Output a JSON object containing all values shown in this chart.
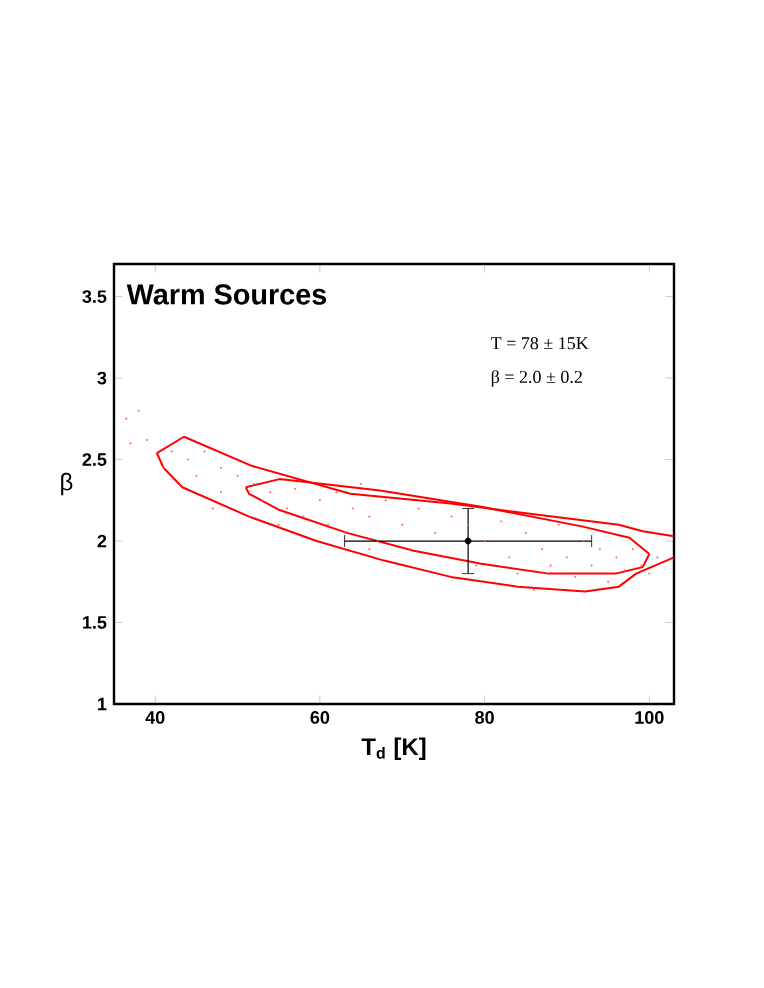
{
  "chart_data": {
    "type": "scatter",
    "title": "Warm Sources",
    "xlabel": "T$_{d}$ [K]",
    "ylabel": "β",
    "annotations": [
      "T = 78 ± 15K",
      "β = 2.0 ± 0.2"
    ],
    "xlim": [
      35,
      103
    ],
    "ylim": [
      1,
      3.7
    ],
    "xticks": [
      40,
      60,
      80,
      100
    ],
    "yticks": [
      1,
      1.5,
      2,
      2.5,
      3,
      3.5
    ],
    "series": [
      {
        "color": "#ff6666",
        "marker": "circle",
        "x": [
          36.5,
          38,
          37,
          39,
          41,
          42,
          44,
          45,
          46,
          48,
          48,
          50,
          52,
          53,
          54,
          56,
          57,
          58,
          60,
          61,
          62,
          63,
          64,
          66,
          67,
          68,
          70,
          71,
          72,
          74,
          75,
          76,
          78,
          79,
          80,
          82,
          83,
          84,
          85,
          87,
          88,
          89,
          90,
          91,
          92,
          93,
          94,
          95,
          96,
          97,
          98,
          99,
          100,
          101,
          47,
          55,
          65,
          73,
          86,
          66
        ],
        "values": [
          2.75,
          2.8,
          2.6,
          2.62,
          2.45,
          2.55,
          2.5,
          2.4,
          2.55,
          2.45,
          2.3,
          2.4,
          2.35,
          2.25,
          2.3,
          2.2,
          2.32,
          2.15,
          2.25,
          2.1,
          2.3,
          2.05,
          2.2,
          2.15,
          2.0,
          2.25,
          2.1,
          1.95,
          2.2,
          2.05,
          1.9,
          2.15,
          2.1,
          1.85,
          2.0,
          2.12,
          1.9,
          1.8,
          2.05,
          1.95,
          1.85,
          2.1,
          1.9,
          1.78,
          2.0,
          1.85,
          1.95,
          1.75,
          1.9,
          1.82,
          1.95,
          1.85,
          1.8,
          1.9,
          2.2,
          2.1,
          2.35,
          2.25,
          1.7,
          1.95
        ]
      },
      {
        "type": "line",
        "color": "#ff0000",
        "marker": "none",
        "x": [
          40.2,
          43.5,
          51.8,
          63.7,
          75.9,
          88.2,
          96.3,
          99.2,
          103
        ],
        "values": [
          2.54,
          2.64,
          2.46,
          2.29,
          2.23,
          2.15,
          2.1,
          2.06,
          2.03
        ]
      },
      {
        "type": "line",
        "color": "#ff0000",
        "marker": "none",
        "x": [
          40.2,
          41,
          43.3,
          51.4,
          59.6,
          67.8,
          75.9,
          84,
          92.2,
          96.3,
          98.4,
          103
        ],
        "values": [
          2.54,
          2.45,
          2.33,
          2.15,
          2.0,
          1.88,
          1.78,
          1.72,
          1.69,
          1.72,
          1.8,
          1.9
        ]
      },
      {
        "type": "line",
        "color": "#ff0000",
        "marker": "none",
        "x": [
          51,
          55.1,
          67.3,
          79.6,
          91.8,
          97.6,
          100
        ],
        "values": [
          2.33,
          2.38,
          2.31,
          2.21,
          2.09,
          2.02,
          1.92
        ]
      },
      {
        "type": "line",
        "color": "#ff0000",
        "marker": "none",
        "x": [
          51,
          51.4,
          55.1,
          63.3,
          71.4,
          79.6,
          87.8,
          95.9,
          99.2,
          100
        ],
        "values": [
          2.33,
          2.29,
          2.19,
          2.05,
          1.94,
          1.86,
          1.8,
          1.8,
          1.84,
          1.92
        ]
      },
      {
        "type": "scatter",
        "color": "#000000",
        "marker": "circle",
        "x": [
          78
        ],
        "values": [
          2.0
        ],
        "errors": [
          0.2
        ],
        "xerrors": [
          15
        ]
      }
    ]
  }
}
